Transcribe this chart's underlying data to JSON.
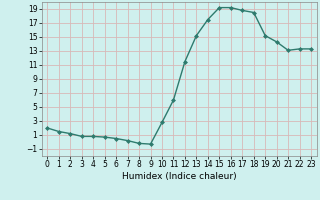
{
  "x": [
    0,
    1,
    2,
    3,
    4,
    5,
    6,
    7,
    8,
    9,
    10,
    11,
    12,
    13,
    14,
    15,
    16,
    17,
    18,
    19,
    20,
    21,
    22,
    23
  ],
  "y": [
    2.0,
    1.5,
    1.2,
    0.8,
    0.8,
    0.7,
    0.5,
    0.2,
    -0.2,
    -0.3,
    2.8,
    6.0,
    11.5,
    15.2,
    17.5,
    19.2,
    19.2,
    18.8,
    18.5,
    15.2,
    14.3,
    13.1,
    13.3,
    13.3
  ],
  "line_color": "#2e7b6e",
  "marker": "D",
  "marker_size": 2.0,
  "bg_color": "#cff0ee",
  "grid_color": "#d8b8b8",
  "xlabel": "Humidex (Indice chaleur)",
  "xlim": [
    -0.5,
    23.5
  ],
  "ylim": [
    -2,
    20
  ],
  "yticks": [
    -1,
    1,
    3,
    5,
    7,
    9,
    11,
    13,
    15,
    17,
    19
  ],
  "xticks": [
    0,
    1,
    2,
    3,
    4,
    5,
    6,
    7,
    8,
    9,
    10,
    11,
    12,
    13,
    14,
    15,
    16,
    17,
    18,
    19,
    20,
    21,
    22,
    23
  ],
  "tick_label_fontsize": 5.5,
  "xlabel_fontsize": 6.5,
  "line_width": 1.0
}
